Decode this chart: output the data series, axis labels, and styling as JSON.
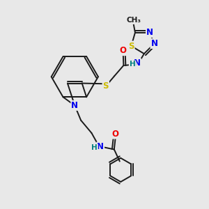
{
  "bg_color": "#e8e8e8",
  "bond_color": "#1a1a1a",
  "bond_width": 1.4,
  "atom_colors": {
    "N": "#0000ee",
    "O": "#ee0000",
    "S": "#ccbb00",
    "H": "#008080",
    "C": "#1a1a1a"
  },
  "font_size": 8.5
}
